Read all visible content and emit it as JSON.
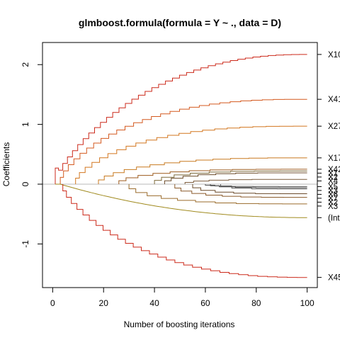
{
  "chart_data": {
    "type": "line",
    "title": "glmboost.formula(formula = Y ~ ., data = D)",
    "xlabel": "Number of boosting iterations",
    "ylabel": "Coefficients",
    "xlim": [
      -4,
      104
    ],
    "ylim": [
      -1.73,
      2.37
    ],
    "xticks": [
      "0",
      "20",
      "40",
      "60",
      "80",
      "100"
    ],
    "xtick_values": [
      0,
      20,
      40,
      60,
      80,
      100
    ],
    "yticks": [
      "-1",
      "0",
      "1",
      "2"
    ],
    "ytick_values": [
      -1,
      0,
      1,
      2
    ],
    "zero_line": 0,
    "grid": false,
    "series": [
      {
        "name": "X10",
        "color": "#cc2a1b",
        "start": 1,
        "end": 100,
        "final": 2.17,
        "t0": 1,
        "shape": 0.32,
        "first_step": 0.27,
        "steps": 38
      },
      {
        "name": "X41",
        "color": "#d4591f",
        "start": 3,
        "end": 100,
        "final": 1.42,
        "t0": 3,
        "shape": 0.5,
        "steps": 28
      },
      {
        "name": "X27",
        "color": "#d2761e",
        "start": 9,
        "end": 100,
        "final": 0.97,
        "t0": 9,
        "shape": 0.55,
        "steps": 22
      },
      {
        "name": "X17",
        "color": "#c8791f",
        "start": 18,
        "end": 100,
        "final": 0.44,
        "t0": 18,
        "shape": 0.6,
        "steps": 14
      },
      {
        "name": "X42",
        "color": "#9c5a1c",
        "start": 26,
        "end": 100,
        "final": 0.25,
        "t0": 26,
        "shape": 0.7,
        "steps": 10
      },
      {
        "name": "X1",
        "color": "#7d6a3a",
        "start": 40,
        "end": 100,
        "final": 0.22,
        "t0": 40,
        "shape": 0.8,
        "steps": 8
      },
      {
        "name": "X2",
        "color": "#6b4a28",
        "start": 44,
        "end": 100,
        "final": 0.19,
        "t0": 44,
        "shape": 0.8,
        "steps": 8
      },
      {
        "name": "X4",
        "color": "#7c5c3c",
        "start": 52,
        "end": 100,
        "final": 0.08,
        "t0": 52,
        "shape": 0.8,
        "steps": 6
      },
      {
        "name": "X5",
        "color": "#555555",
        "start": 60,
        "end": 100,
        "final": -0.04,
        "t0": 60,
        "shape": 0.8,
        "steps": 5
      },
      {
        "name": "X3",
        "color": "#4a4a4a",
        "start": 62,
        "end": 100,
        "final": -0.06,
        "t0": 62,
        "shape": 0.8,
        "steps": 5
      },
      {
        "name": "X6",
        "color": "#5a5a5a",
        "start": 66,
        "end": 100,
        "final": -0.08,
        "t0": 66,
        "shape": 0.8,
        "steps": 4
      },
      {
        "name": "X7",
        "color": "#6a4a2a",
        "start": 55,
        "end": 100,
        "final": -0.16,
        "t0": 55,
        "shape": 0.8,
        "steps": 6
      },
      {
        "name": "X2",
        "color": "#8a5a2a",
        "start": 48,
        "end": 100,
        "final": -0.22,
        "t0": 48,
        "shape": 0.8,
        "steps": 8
      },
      {
        "name": "X3",
        "color": "#9a6b2b",
        "start": 30,
        "end": 100,
        "final": -0.33,
        "t0": 30,
        "shape": 0.7,
        "steps": 10
      },
      {
        "name": "(Inte",
        "color": "#a08a1e",
        "start": 3,
        "end": 100,
        "final": -0.56,
        "t0": 3,
        "shape": 0.45,
        "steps": 0,
        "intercept": true
      },
      {
        "name": "X45",
        "color": "#cc2a1b",
        "start": 4,
        "end": 100,
        "final": -1.56,
        "t0": 4,
        "shape": 0.4,
        "steps": 30
      }
    ]
  },
  "side_labels": [
    "X10",
    "X41",
    "X27",
    "X17",
    "X42",
    "X1",
    "X2",
    "X4",
    "X5",
    "X3",
    "X6",
    "X7",
    "X2",
    "X3",
    "(Inte",
    "X45"
  ]
}
